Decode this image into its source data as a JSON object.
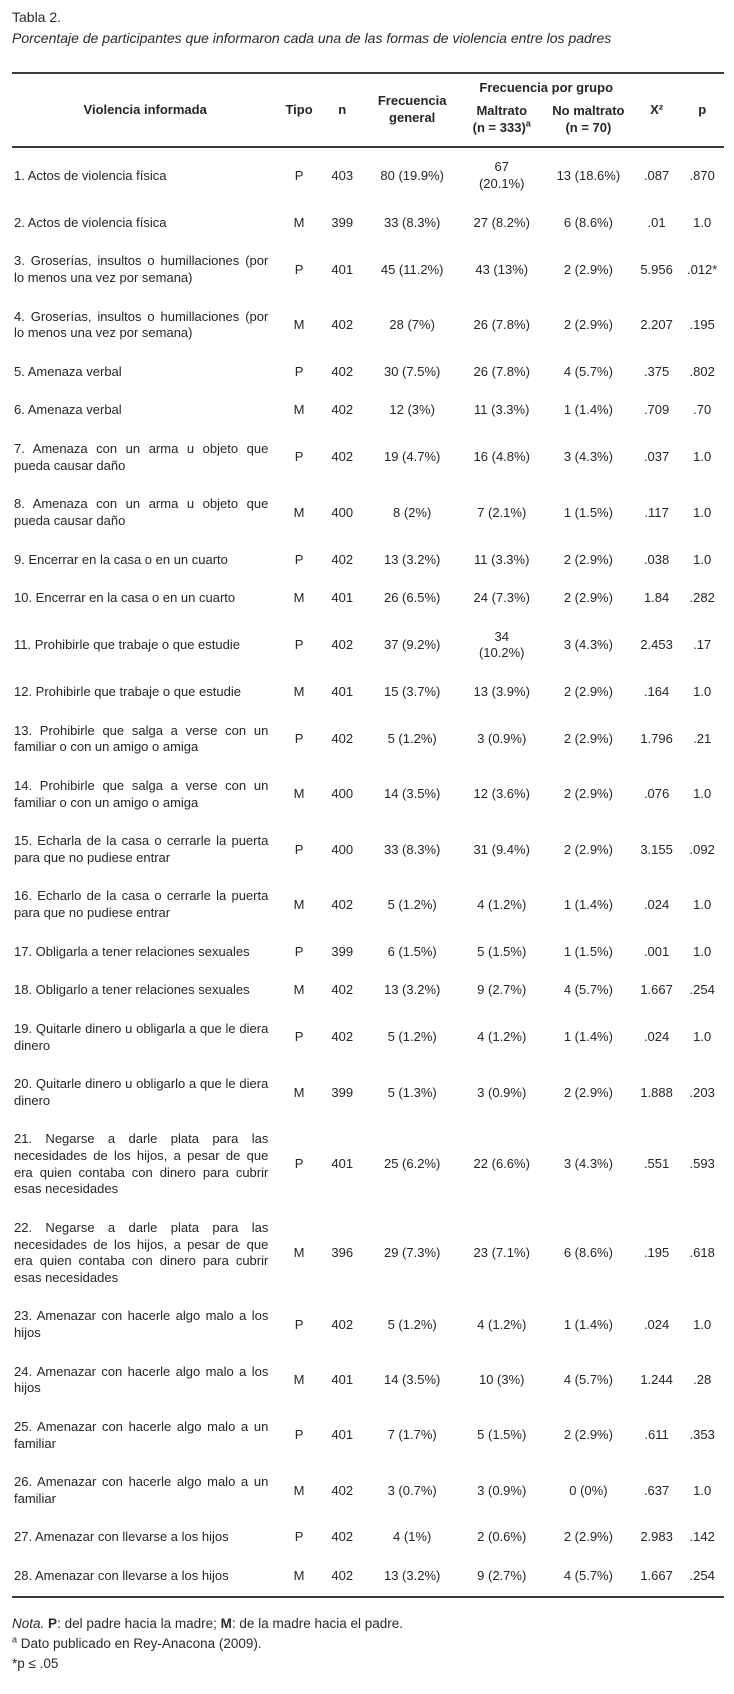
{
  "table": {
    "label": "Tabla 2.",
    "caption": "Porcentaje de participantes que informaron cada una de las formas de violencia entre los padres",
    "headers": {
      "violencia": "Violencia informada",
      "tipo": "Tipo",
      "n": "n",
      "frecuencia_general": "Frecuencia general",
      "frecuencia_grupo": "Frecuencia por grupo",
      "maltrato_line1": "Maltrato",
      "maltrato_line2": "(n = 333)",
      "maltrato_sup": "a",
      "no_maltrato_line1": "No maltrato",
      "no_maltrato_line2": "(n = 70)",
      "x2": "X²",
      "p": "p"
    },
    "rows": [
      {
        "violencia": "1. Actos de violencia física",
        "tipo": "P",
        "n": "403",
        "frecuencia_general": "80 (19.9%)",
        "maltrato": "67\n(20.1%)",
        "no_maltrato": "13 (18.6%)",
        "x2": ".087",
        "p": ".870"
      },
      {
        "violencia": "2. Actos de violencia física",
        "tipo": "M",
        "n": "399",
        "frecuencia_general": "33 (8.3%)",
        "maltrato": "27 (8.2%)",
        "no_maltrato": "6 (8.6%)",
        "x2": ".01",
        "p": "1.0"
      },
      {
        "violencia": "3. Groserías, insultos o humillaciones (por lo menos una vez por semana)",
        "tipo": "P",
        "n": "401",
        "frecuencia_general": "45 (11.2%)",
        "maltrato": "43 (13%)",
        "no_maltrato": "2 (2.9%)",
        "x2": "5.956",
        "p": ".012*"
      },
      {
        "violencia": "4. Groserías, insultos o humillaciones (por lo menos una vez por semana)",
        "tipo": "M",
        "n": "402",
        "frecuencia_general": "28 (7%)",
        "maltrato": "26 (7.8%)",
        "no_maltrato": "2 (2.9%)",
        "x2": "2.207",
        "p": ".195"
      },
      {
        "violencia": "5. Amenaza verbal",
        "tipo": "P",
        "n": "402",
        "frecuencia_general": "30 (7.5%)",
        "maltrato": "26 (7.8%)",
        "no_maltrato": "4 (5.7%)",
        "x2": ".375",
        "p": ".802"
      },
      {
        "violencia": "6. Amenaza verbal",
        "tipo": "M",
        "n": "402",
        "frecuencia_general": "12 (3%)",
        "maltrato": "11 (3.3%)",
        "no_maltrato": "1 (1.4%)",
        "x2": ".709",
        "p": ".70"
      },
      {
        "violencia": "7. Amenaza con un arma u objeto que pueda causar daño",
        "tipo": "P",
        "n": "402",
        "frecuencia_general": "19 (4.7%)",
        "maltrato": "16 (4.8%)",
        "no_maltrato": "3 (4.3%)",
        "x2": ".037",
        "p": "1.0"
      },
      {
        "violencia": "8. Amenaza con un arma u objeto que pueda causar daño",
        "tipo": "M",
        "n": "400",
        "frecuencia_general": "8 (2%)",
        "maltrato": "7 (2.1%)",
        "no_maltrato": "1 (1.5%)",
        "x2": ".117",
        "p": "1.0"
      },
      {
        "violencia": "9. Encerrar en la casa o en un cuarto",
        "tipo": "P",
        "n": "402",
        "frecuencia_general": "13 (3.2%)",
        "maltrato": "11 (3.3%)",
        "no_maltrato": "2 (2.9%)",
        "x2": ".038",
        "p": "1.0"
      },
      {
        "violencia": "10. Encerrar en la casa o en un cuarto",
        "tipo": "M",
        "n": "401",
        "frecuencia_general": "26 (6.5%)",
        "maltrato": "24 (7.3%)",
        "no_maltrato": "2 (2.9%)",
        "x2": "1.84",
        "p": ".282"
      },
      {
        "violencia": "11. Prohibirle que trabaje o que estudie",
        "tipo": "P",
        "n": "402",
        "frecuencia_general": "37 (9.2%)",
        "maltrato": "34\n(10.2%)",
        "no_maltrato": "3 (4.3%)",
        "x2": "2.453",
        "p": ".17"
      },
      {
        "violencia": "12. Prohibirle que trabaje o que estudie",
        "tipo": "M",
        "n": "401",
        "frecuencia_general": "15 (3.7%)",
        "maltrato": "13 (3.9%)",
        "no_maltrato": "2 (2.9%)",
        "x2": ".164",
        "p": "1.0"
      },
      {
        "violencia": "13. Prohibirle que salga a verse con un familiar o con un amigo o amiga",
        "tipo": "P",
        "n": "402",
        "frecuencia_general": "5 (1.2%)",
        "maltrato": "3 (0.9%)",
        "no_maltrato": "2 (2.9%)",
        "x2": "1.796",
        "p": ".21"
      },
      {
        "violencia": "14. Prohibirle que salga a verse con un familiar o con un amigo o amiga",
        "tipo": "M",
        "n": "400",
        "frecuencia_general": "14 (3.5%)",
        "maltrato": "12 (3.6%)",
        "no_maltrato": "2 (2.9%)",
        "x2": ".076",
        "p": "1.0"
      },
      {
        "violencia": "15. Echarla de la casa o cerrarle la puerta para que no pudiese entrar",
        "tipo": "P",
        "n": "400",
        "frecuencia_general": "33 (8.3%)",
        "maltrato": "31 (9.4%)",
        "no_maltrato": "2 (2.9%)",
        "x2": "3.155",
        "p": ".092"
      },
      {
        "violencia": "16. Echarlo de la casa o cerrarle la puerta para que no pudiese entrar",
        "tipo": "M",
        "n": "402",
        "frecuencia_general": "5 (1.2%)",
        "maltrato": "4 (1.2%)",
        "no_maltrato": "1 (1.4%)",
        "x2": ".024",
        "p": "1.0"
      },
      {
        "violencia": "17. Obligarla a tener relaciones sexuales",
        "tipo": "P",
        "n": "399",
        "frecuencia_general": "6 (1.5%)",
        "maltrato": "5 (1.5%)",
        "no_maltrato": "1 (1.5%)",
        "x2": ".001",
        "p": "1.0"
      },
      {
        "violencia": "18. Obligarlo a tener relaciones sexuales",
        "tipo": "M",
        "n": "402",
        "frecuencia_general": "13 (3.2%)",
        "maltrato": "9 (2.7%)",
        "no_maltrato": "4 (5.7%)",
        "x2": "1.667",
        "p": ".254"
      },
      {
        "violencia": "19. Quitarle dinero u obligarla a que le diera dinero",
        "tipo": "P",
        "n": "402",
        "frecuencia_general": "5 (1.2%)",
        "maltrato": "4 (1.2%)",
        "no_maltrato": "1 (1.4%)",
        "x2": ".024",
        "p": "1.0"
      },
      {
        "violencia": "20. Quitarle dinero u obligarlo a que le diera dinero",
        "tipo": "M",
        "n": "399",
        "frecuencia_general": "5 (1.3%)",
        "maltrato": "3 (0.9%)",
        "no_maltrato": "2 (2.9%)",
        "x2": "1.888",
        "p": ".203"
      },
      {
        "violencia": "21. Negarse a darle plata para las necesidades de los hijos, a pesar de que era quien contaba con dinero para cubrir esas necesidades",
        "tipo": "P",
        "n": "401",
        "frecuencia_general": "25 (6.2%)",
        "maltrato": "22 (6.6%)",
        "no_maltrato": "3 (4.3%)",
        "x2": ".551",
        "p": ".593"
      },
      {
        "violencia": "22. Negarse a darle plata para las necesidades de los hijos, a pesar de que era quien contaba con dinero para cubrir esas necesidades",
        "tipo": "M",
        "n": "396",
        "frecuencia_general": "29 (7.3%)",
        "maltrato": "23 (7.1%)",
        "no_maltrato": "6 (8.6%)",
        "x2": ".195",
        "p": ".618"
      },
      {
        "violencia": "23. Amenazar con hacerle algo malo a los hijos",
        "tipo": "P",
        "n": "402",
        "frecuencia_general": "5 (1.2%)",
        "maltrato": "4 (1.2%)",
        "no_maltrato": "1 (1.4%)",
        "x2": ".024",
        "p": "1.0"
      },
      {
        "violencia": "24. Amenazar con hacerle algo malo a los hijos",
        "tipo": "M",
        "n": "401",
        "frecuencia_general": "14 (3.5%)",
        "maltrato": "10 (3%)",
        "no_maltrato": "4 (5.7%)",
        "x2": "1.244",
        "p": ".28"
      },
      {
        "violencia": "25. Amenazar con hacerle algo malo a un familiar",
        "tipo": "P",
        "n": "401",
        "frecuencia_general": "7 (1.7%)",
        "maltrato": "5 (1.5%)",
        "no_maltrato": "2 (2.9%)",
        "x2": ".611",
        "p": ".353"
      },
      {
        "violencia": "26. Amenazar con hacerle algo malo a un familiar",
        "tipo": "M",
        "n": "402",
        "frecuencia_general": "3 (0.7%)",
        "maltrato": "3 (0.9%)",
        "no_maltrato": "0 (0%)",
        "x2": ".637",
        "p": "1.0"
      },
      {
        "violencia": "27. Amenazar con llevarse a los hijos",
        "tipo": "P",
        "n": "402",
        "frecuencia_general": "4 (1%)",
        "maltrato": "2 (0.6%)",
        "no_maltrato": "2 (2.9%)",
        "x2": "2.983",
        "p": ".142"
      },
      {
        "violencia": "28. Amenazar con llevarse a los hijos",
        "tipo": "M",
        "n": "402",
        "frecuencia_general": "13 (3.2%)",
        "maltrato": "9 (2.7%)",
        "no_maltrato": "4 (5.7%)",
        "x2": "1.667",
        "p": ".254"
      }
    ]
  },
  "notes": {
    "nota_label": "Nota.",
    "p_label": "P",
    "p_text": ": del padre hacia la madre; ",
    "m_label": "M",
    "m_text": ": de la madre hacia el padre.",
    "sup_a": "a",
    "a_text": " Dato publicado en Rey-Anacona (2009).",
    "sig": "*p ≤ .05"
  }
}
